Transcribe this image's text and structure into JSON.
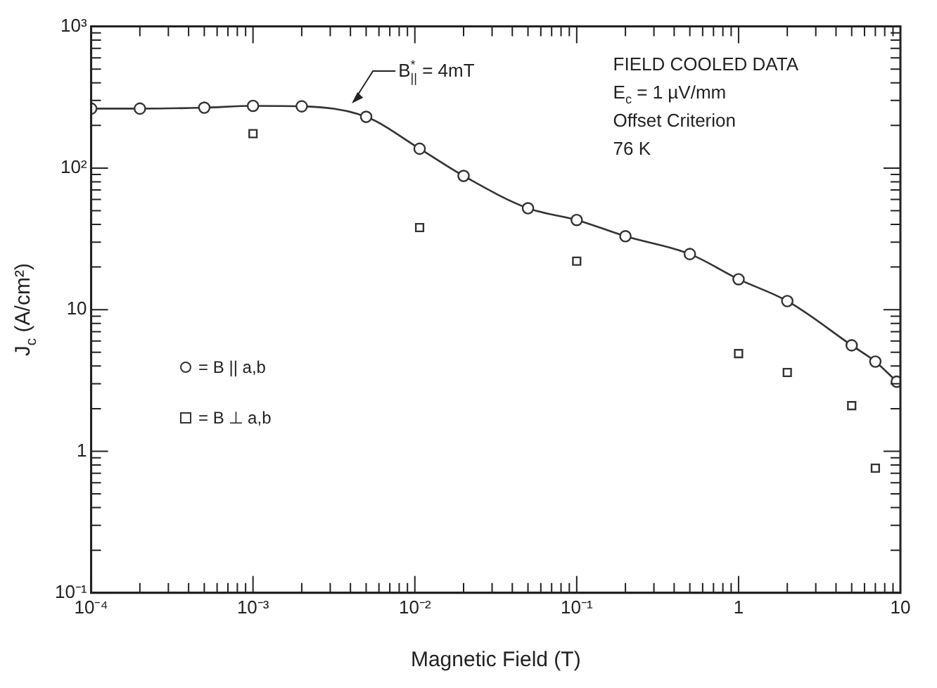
{
  "chart_data": {
    "type": "scatter",
    "xlabel": "Magnetic Field (T)",
    "ylabel": "J$_{c}$ (A/cm²)",
    "log": "xy",
    "xlim": [
      0.0001,
      10
    ],
    "ylim": [
      0.1,
      1000
    ],
    "xticks": [
      {
        "value": 0.0001,
        "label": "10⁻⁴"
      },
      {
        "value": 0.0002,
        "label": null
      },
      {
        "value": 0.0003,
        "label": null
      },
      {
        "value": 0.0004,
        "label": null
      },
      {
        "value": 0.0005,
        "label": null
      },
      {
        "value": 0.0006,
        "label": null
      },
      {
        "value": 0.0007,
        "label": null
      },
      {
        "value": 0.0008,
        "label": null
      },
      {
        "value": 0.0009,
        "label": null
      },
      {
        "value": 0.001,
        "label": "10⁻³"
      },
      {
        "value": 0.002,
        "label": null
      },
      {
        "value": 0.003,
        "label": null
      },
      {
        "value": 0.004,
        "label": null
      },
      {
        "value": 0.005,
        "label": null
      },
      {
        "value": 0.006,
        "label": null
      },
      {
        "value": 0.007,
        "label": null
      },
      {
        "value": 0.008,
        "label": null
      },
      {
        "value": 0.009,
        "label": null
      },
      {
        "value": 0.01,
        "label": "10⁻²"
      },
      {
        "value": 0.02,
        "label": null
      },
      {
        "value": 0.03,
        "label": null
      },
      {
        "value": 0.04,
        "label": null
      },
      {
        "value": 0.05,
        "label": null
      },
      {
        "value": 0.06,
        "label": null
      },
      {
        "value": 0.07,
        "label": null
      },
      {
        "value": 0.08,
        "label": null
      },
      {
        "value": 0.09,
        "label": null
      },
      {
        "value": 0.1,
        "label": "10⁻¹"
      },
      {
        "value": 0.2,
        "label": null
      },
      {
        "value": 0.3,
        "label": null
      },
      {
        "value": 0.4,
        "label": null
      },
      {
        "value": 0.5,
        "label": null
      },
      {
        "value": 0.6,
        "label": null
      },
      {
        "value": 0.7,
        "label": null
      },
      {
        "value": 0.8,
        "label": null
      },
      {
        "value": 0.9,
        "label": null
      },
      1,
      {
        "value": 2,
        "label": null
      },
      {
        "value": 3,
        "label": null
      },
      {
        "value": 4,
        "label": null
      },
      {
        "value": 5,
        "label": null
      },
      {
        "value": 6,
        "label": null
      },
      {
        "value": 7,
        "label": null
      },
      {
        "value": 8,
        "label": null
      },
      {
        "value": 9,
        "label": null
      },
      10
    ],
    "yticks": [
      {
        "value": 0.1,
        "label": "10⁻¹"
      },
      {
        "value": 0.2,
        "label": null
      },
      {
        "value": 0.3,
        "label": null
      },
      {
        "value": 0.4,
        "label": null
      },
      {
        "value": 0.5,
        "label": null
      },
      {
        "value": 0.6,
        "label": null
      },
      {
        "value": 0.7,
        "label": null
      },
      {
        "value": 0.8,
        "label": null
      },
      {
        "value": 0.9,
        "label": null
      },
      1,
      {
        "value": 2,
        "label": null
      },
      {
        "value": 3,
        "label": null
      },
      {
        "value": 4,
        "label": null
      },
      {
        "value": 5,
        "label": null
      },
      {
        "value": 6,
        "label": null
      },
      {
        "value": 7,
        "label": null
      },
      {
        "value": 8,
        "label": null
      },
      {
        "value": 9,
        "label": null
      },
      10,
      {
        "value": 20,
        "label": null
      },
      {
        "value": 30,
        "label": null
      },
      {
        "value": 40,
        "label": null
      },
      {
        "value": 50,
        "label": null
      },
      {
        "value": 60,
        "label": null
      },
      {
        "value": 70,
        "label": null
      },
      {
        "value": 80,
        "label": null
      },
      {
        "value": 90,
        "label": null
      },
      {
        "value": 100,
        "label": "10²"
      },
      {
        "value": 200,
        "label": null
      },
      {
        "value": 300,
        "label": null
      },
      {
        "value": 400,
        "label": null
      },
      {
        "value": 500,
        "label": null
      },
      {
        "value": 600,
        "label": null
      },
      {
        "value": 700,
        "label": null
      },
      {
        "value": 800,
        "label": null
      },
      {
        "value": 900,
        "label": null
      },
      {
        "value": 1000,
        "label": "10³"
      }
    ],
    "grid": false,
    "legend": "left",
    "series": [
      {
        "name": "= B || a,b",
        "type": "line",
        "marker": "circle",
        "line_style": "solid",
        "color": "#333333",
        "x": [
          0.0001,
          0.0002,
          0.0005,
          0.001,
          0.002,
          0.005,
          0.0107,
          0.02,
          0.05,
          0.1,
          0.2,
          0.5,
          1,
          2,
          5,
          7,
          9.5
        ],
        "values": [
          263,
          263,
          267,
          275,
          273,
          230,
          137,
          88,
          52,
          43,
          33,
          24.7,
          16.4,
          11.5,
          5.6,
          4.3,
          3.1
        ]
      },
      {
        "name": "= B ⊥ a,b",
        "type": "scatter",
        "marker": "square",
        "color": "#333333",
        "x": [
          0.001,
          0.0107,
          0.1,
          1,
          2,
          5,
          7
        ],
        "values": [
          175,
          38,
          22,
          4.9,
          3.6,
          2.1,
          0.76
        ]
      }
    ],
    "annotations": [
      {
        "text": "B$^{*}$$_{||}$ = 4mT",
        "x": 0.004,
        "y": 280
      },
      "FIELD COOLED DATA",
      "E$_{c}$ = 1 µV/mm",
      "Offset Criterion",
      "76 K"
    ]
  }
}
